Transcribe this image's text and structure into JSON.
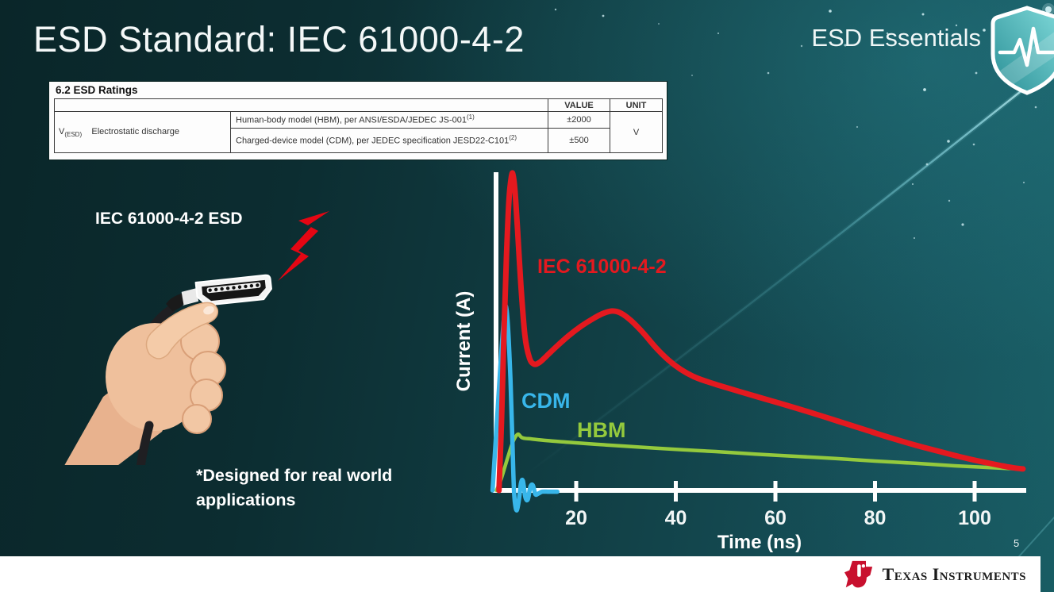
{
  "slide": {
    "title": "ESD Standard: IEC 61000-4-2",
    "brand": "ESD Essentials",
    "page_number": "5",
    "illustration_label": "IEC 61000-4-2 ESD",
    "footnote_line1": "*Designed for real world",
    "footnote_line2": "applications"
  },
  "ratings_table": {
    "section_title": "6.2  ESD Ratings",
    "value_header": "VALUE",
    "unit_header": "UNIT",
    "symbol": "V",
    "symbol_subscript": "(ESD)",
    "parameter": "Electrostatic discharge",
    "rows": [
      {
        "description": "Human-body model (HBM), per ANSI/ESDA/JEDEC JS-001",
        "superscript": "(1)",
        "value": "±2000"
      },
      {
        "description": "Charged-device model (CDM), per JEDEC specification JESD22-C101",
        "superscript": "(2)",
        "value": "±500"
      }
    ],
    "unit": "V"
  },
  "footer": {
    "logo_text": "Texas Instruments"
  },
  "chart_data": {
    "type": "line",
    "title": "",
    "xlabel": "Time (ns)",
    "ylabel": "Current (A)",
    "x_ticks": [
      20,
      40,
      60,
      80,
      100
    ],
    "xlim": [
      0,
      112
    ],
    "ylim": [
      -0.1,
      1.08
    ],
    "y_units": "normalized current, no y-axis ticks shown (IEC 61000-4-2 first peak = 1.0)",
    "grid": false,
    "legend_position": "inline-labels",
    "series": [
      {
        "name": "IEC 61000-4-2",
        "color": "#e4191f",
        "points": [
          [
            4.5,
            0
          ],
          [
            5.0,
            0.22
          ],
          [
            5.5,
            0.5
          ],
          [
            6.0,
            0.74
          ],
          [
            6.5,
            0.92
          ],
          [
            7.0,
            0.995
          ],
          [
            7.3,
            1.0
          ],
          [
            7.7,
            0.95
          ],
          [
            8.2,
            0.83
          ],
          [
            8.9,
            0.65
          ],
          [
            9.7,
            0.49
          ],
          [
            10.6,
            0.42
          ],
          [
            11.5,
            0.4
          ],
          [
            12.6,
            0.405
          ],
          [
            14,
            0.425
          ],
          [
            16,
            0.455
          ],
          [
            18.5,
            0.49
          ],
          [
            21,
            0.52
          ],
          [
            23.5,
            0.545
          ],
          [
            25.5,
            0.561
          ],
          [
            27.3,
            0.568
          ],
          [
            29,
            0.561
          ],
          [
            31,
            0.538
          ],
          [
            33.5,
            0.498
          ],
          [
            36,
            0.452
          ],
          [
            38.5,
            0.413
          ],
          [
            41,
            0.383
          ],
          [
            43.5,
            0.361
          ],
          [
            46,
            0.346
          ],
          [
            49,
            0.331
          ],
          [
            53,
            0.312
          ],
          [
            58,
            0.289
          ],
          [
            63,
            0.266
          ],
          [
            68,
            0.242
          ],
          [
            73,
            0.217
          ],
          [
            78,
            0.192
          ],
          [
            83,
            0.167
          ],
          [
            88,
            0.144
          ],
          [
            93,
            0.123
          ],
          [
            98,
            0.103
          ],
          [
            102,
            0.089
          ],
          [
            105.5,
            0.078
          ],
          [
            108,
            0.071
          ],
          [
            109.7,
            0.068
          ]
        ]
      },
      {
        "name": "CDM",
        "color": "#38b6ea",
        "points": [
          [
            3.2,
            0
          ],
          [
            3.6,
            0.1
          ],
          [
            4.2,
            0.25
          ],
          [
            4.8,
            0.4
          ],
          [
            5.3,
            0.51
          ],
          [
            5.8,
            0.585
          ],
          [
            6.3,
            0.52
          ],
          [
            6.8,
            0.35
          ],
          [
            7.2,
            0.15
          ],
          [
            7.5,
            0.0
          ],
          [
            7.8,
            -0.05
          ],
          [
            8.1,
            -0.062
          ],
          [
            8.5,
            -0.03
          ],
          [
            8.9,
            0.022
          ],
          [
            9.3,
            0.03
          ],
          [
            9.8,
            -0.022
          ],
          [
            10.3,
            -0.028
          ],
          [
            10.8,
            0.012
          ],
          [
            11.3,
            0.016
          ],
          [
            11.8,
            -0.012
          ],
          [
            12.4,
            -0.01
          ],
          [
            13.2,
            -0.004
          ],
          [
            14.5,
            -0.004
          ],
          [
            16.2,
            -0.004
          ]
        ]
      },
      {
        "name": "HBM",
        "color": "#94c93d",
        "points": [
          [
            4.0,
            0
          ],
          [
            4.8,
            0.03
          ],
          [
            5.6,
            0.07
          ],
          [
            6.4,
            0.112
          ],
          [
            7.2,
            0.15
          ],
          [
            7.9,
            0.172
          ],
          [
            8.4,
            0.178
          ],
          [
            9.0,
            0.168
          ],
          [
            9.6,
            0.165
          ],
          [
            11,
            0.163
          ],
          [
            14,
            0.158
          ],
          [
            18,
            0.153
          ],
          [
            24,
            0.146
          ],
          [
            32,
            0.138
          ],
          [
            40,
            0.13
          ],
          [
            48,
            0.123
          ],
          [
            56,
            0.115
          ],
          [
            64,
            0.108
          ],
          [
            72,
            0.101
          ],
          [
            80,
            0.093
          ],
          [
            88,
            0.086
          ],
          [
            96,
            0.078
          ],
          [
            102,
            0.073
          ],
          [
            106,
            0.07
          ],
          [
            109.7,
            0.068
          ]
        ]
      }
    ]
  }
}
